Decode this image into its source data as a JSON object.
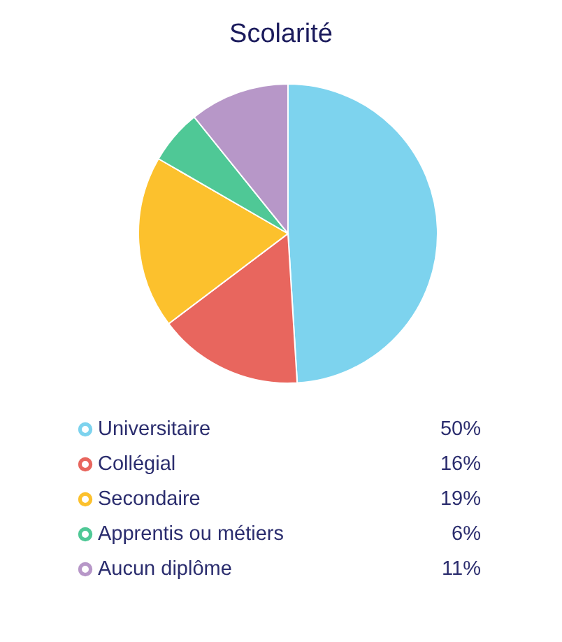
{
  "chart_data": {
    "type": "pie",
    "title": "Scolarité",
    "categories": [
      "Universitaire",
      "Collégial",
      "Secondaire",
      "Apprentis ou métiers",
      "Aucun diplôme"
    ],
    "values": [
      50,
      16,
      19,
      6,
      11
    ],
    "value_labels": [
      "50%",
      "16%",
      "19%",
      "6%",
      "11%"
    ],
    "colors": [
      "#7dd3ee",
      "#e8665e",
      "#fcc12d",
      "#4fc896",
      "#b797c8"
    ],
    "legend": "bottom"
  }
}
